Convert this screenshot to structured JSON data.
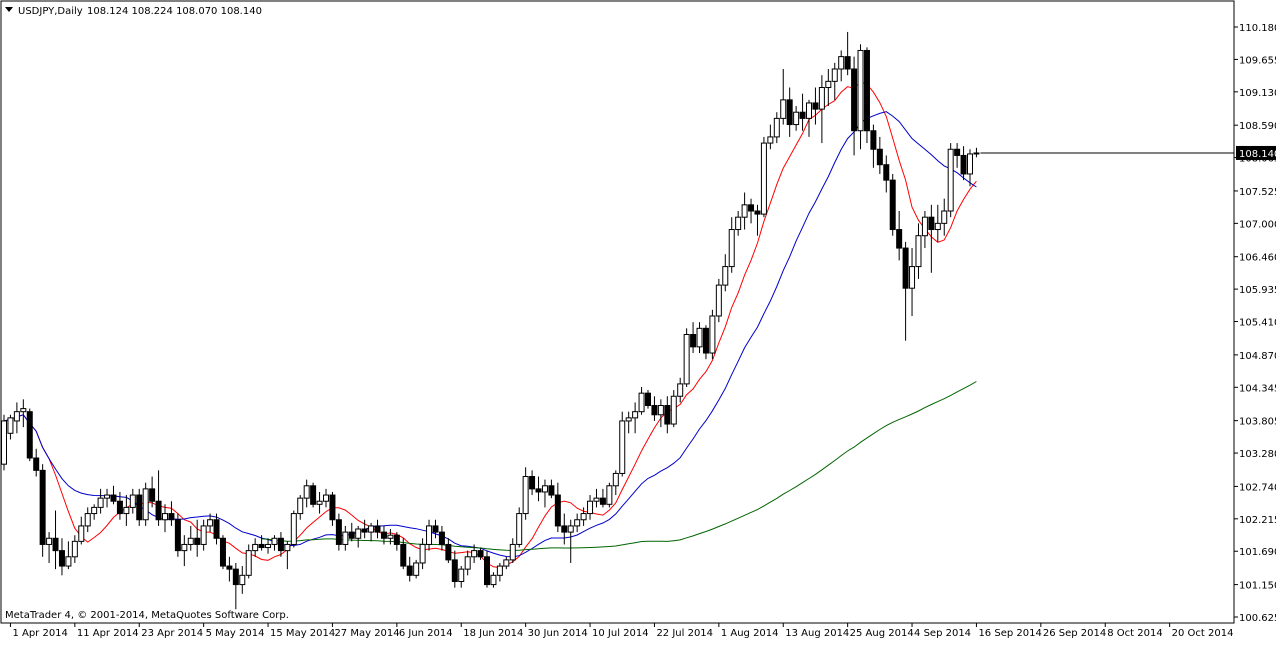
{
  "header": {
    "symbol_timeframe": "USDJPY,Daily",
    "ohlc": "108.124 108.224 108.070 108.140"
  },
  "footer": {
    "copyright": "MetaTrader 4, © 2001-2014, MetaQuotes Software Corp."
  },
  "price_tag": "108.140",
  "colors": {
    "background": "#ffffff",
    "axis": "#000000",
    "candle": "#000000",
    "ma_fast": "#ff0000",
    "ma_mid": "#0000cc",
    "ma_slow": "#006400",
    "price_tag_bg": "#000000",
    "price_tag_text": "#ffffff"
  },
  "chart_data": {
    "type": "candlestick",
    "ylim": [
      100.625,
      110.18
    ],
    "y_ticks": [
      "110.180",
      "109.655",
      "109.130",
      "108.590",
      "108.065",
      "107.525",
      "107.000",
      "106.460",
      "105.935",
      "105.410",
      "104.870",
      "104.345",
      "103.805",
      "103.280",
      "102.740",
      "102.215",
      "101.690",
      "101.150",
      "100.625"
    ],
    "x_tick_labels": [
      "1 Apr 2014",
      "11 Apr 2014",
      "23 Apr 2014",
      "5 May 2014",
      "15 May 2014",
      "27 May 2014",
      "6 Jun 2014",
      "18 Jun 2014",
      "30 Jun 2014",
      "10 Jul 2014",
      "22 Jul 2014",
      "1 Aug 2014",
      "13 Aug 2014",
      "25 Aug 2014",
      "4 Sep 2014",
      "16 Sep 2014",
      "26 Sep 2014",
      "8 Oct 2014",
      "20 Oct 2014"
    ],
    "x_tick_index": [
      1,
      11,
      21,
      31,
      41,
      51,
      61,
      71,
      81,
      91,
      101,
      111,
      121,
      131,
      141,
      151,
      161,
      171,
      181
    ],
    "bars": [
      [
        103.1,
        103.9,
        103.0,
        103.8
      ],
      [
        103.6,
        103.9,
        103.5,
        103.85
      ],
      [
        103.8,
        104.1,
        103.6,
        103.95
      ],
      [
        103.95,
        104.15,
        103.7,
        104.0
      ],
      [
        103.95,
        104.0,
        103.15,
        103.2
      ],
      [
        103.2,
        103.35,
        102.9,
        103.0
      ],
      [
        103.0,
        103.1,
        101.6,
        101.8
      ],
      [
        101.8,
        102.0,
        101.5,
        101.9
      ],
      [
        101.9,
        102.35,
        101.4,
        101.7
      ],
      [
        101.7,
        101.9,
        101.3,
        101.45
      ],
      [
        101.45,
        101.85,
        101.4,
        101.6
      ],
      [
        101.6,
        101.95,
        101.5,
        101.85
      ],
      [
        101.85,
        102.25,
        101.8,
        102.1
      ],
      [
        102.1,
        102.4,
        102.0,
        102.3
      ],
      [
        102.3,
        102.45,
        102.2,
        102.4
      ],
      [
        102.4,
        102.7,
        102.3,
        102.55
      ],
      [
        102.55,
        102.7,
        102.4,
        102.6
      ],
      [
        102.6,
        102.75,
        102.45,
        102.5
      ],
      [
        102.5,
        102.65,
        102.2,
        102.3
      ],
      [
        102.3,
        102.6,
        102.1,
        102.4
      ],
      [
        102.4,
        102.7,
        102.3,
        102.6
      ],
      [
        102.6,
        102.7,
        102.1,
        102.2
      ],
      [
        102.2,
        102.8,
        102.1,
        102.7
      ],
      [
        102.7,
        102.9,
        102.4,
        102.5
      ],
      [
        102.5,
        103.0,
        102.1,
        102.2
      ],
      [
        102.2,
        102.45,
        102.0,
        102.3
      ],
      [
        102.3,
        102.5,
        102.1,
        102.2
      ],
      [
        102.2,
        102.3,
        101.6,
        101.7
      ],
      [
        101.7,
        101.95,
        101.45,
        101.8
      ],
      [
        101.8,
        102.1,
        101.7,
        101.9
      ],
      [
        101.9,
        102.2,
        101.6,
        101.8
      ],
      [
        101.8,
        102.2,
        101.7,
        102.1
      ],
      [
        102.1,
        102.3,
        102.0,
        102.2
      ],
      [
        102.2,
        102.3,
        101.8,
        101.9
      ],
      [
        101.9,
        101.95,
        101.4,
        101.45
      ],
      [
        101.45,
        101.6,
        101.2,
        101.4
      ],
      [
        101.4,
        101.5,
        100.75,
        101.15
      ],
      [
        101.15,
        101.45,
        101.0,
        101.3
      ],
      [
        101.3,
        101.8,
        101.25,
        101.7
      ],
      [
        101.7,
        101.9,
        101.6,
        101.8
      ],
      [
        101.8,
        101.95,
        101.7,
        101.75
      ],
      [
        101.75,
        101.9,
        101.65,
        101.8
      ],
      [
        101.8,
        101.95,
        101.7,
        101.9
      ],
      [
        101.9,
        102.0,
        101.6,
        101.7
      ],
      [
        101.7,
        101.85,
        101.4,
        101.8
      ],
      [
        101.8,
        102.35,
        101.75,
        102.3
      ],
      [
        102.3,
        102.6,
        102.2,
        102.55
      ],
      [
        102.55,
        102.85,
        102.4,
        102.75
      ],
      [
        102.75,
        102.8,
        102.4,
        102.45
      ],
      [
        102.45,
        102.65,
        102.3,
        102.5
      ],
      [
        102.5,
        102.7,
        102.4,
        102.6
      ],
      [
        102.6,
        102.65,
        102.1,
        102.2
      ],
      [
        102.2,
        102.3,
        101.7,
        101.8
      ],
      [
        101.8,
        102.1,
        101.7,
        102.0
      ],
      [
        102.0,
        102.15,
        101.85,
        101.9
      ],
      [
        101.9,
        102.1,
        101.75,
        102.05
      ],
      [
        102.05,
        102.2,
        101.9,
        102.0
      ],
      [
        102.0,
        102.15,
        101.85,
        102.1
      ],
      [
        102.1,
        102.2,
        101.9,
        102.0
      ],
      [
        102.0,
        102.1,
        101.8,
        101.9
      ],
      [
        101.9,
        102.05,
        101.8,
        101.95
      ],
      [
        101.95,
        102.0,
        101.7,
        101.8
      ],
      [
        101.8,
        101.9,
        101.4,
        101.45
      ],
      [
        101.45,
        101.6,
        101.2,
        101.3
      ],
      [
        101.3,
        101.55,
        101.25,
        101.5
      ],
      [
        101.5,
        101.9,
        101.4,
        101.8
      ],
      [
        101.8,
        102.2,
        101.7,
        102.1
      ],
      [
        102.1,
        102.2,
        101.9,
        102.0
      ],
      [
        102.0,
        102.1,
        101.7,
        101.8
      ],
      [
        101.8,
        101.9,
        101.5,
        101.55
      ],
      [
        101.55,
        101.7,
        101.1,
        101.2
      ],
      [
        101.2,
        101.45,
        101.1,
        101.4
      ],
      [
        101.4,
        101.7,
        101.3,
        101.6
      ],
      [
        101.6,
        101.8,
        101.5,
        101.7
      ],
      [
        101.7,
        101.75,
        101.55,
        101.6
      ],
      [
        101.6,
        101.7,
        101.1,
        101.15
      ],
      [
        101.15,
        101.35,
        101.1,
        101.3
      ],
      [
        101.3,
        101.5,
        101.2,
        101.45
      ],
      [
        101.45,
        101.6,
        101.4,
        101.55
      ],
      [
        101.55,
        101.9,
        101.5,
        101.8
      ],
      [
        101.8,
        102.4,
        101.75,
        102.3
      ],
      [
        102.3,
        103.05,
        102.2,
        102.9
      ],
      [
        102.9,
        103.0,
        102.6,
        102.7
      ],
      [
        102.7,
        102.9,
        102.5,
        102.65
      ],
      [
        102.65,
        102.85,
        102.4,
        102.75
      ],
      [
        102.75,
        102.85,
        102.55,
        102.6
      ],
      [
        102.6,
        102.8,
        102.0,
        102.1
      ],
      [
        102.1,
        102.3,
        101.8,
        102.0
      ],
      [
        102.0,
        102.2,
        101.5,
        102.1
      ],
      [
        102.1,
        102.3,
        102.0,
        102.2
      ],
      [
        102.2,
        102.4,
        102.1,
        102.3
      ],
      [
        102.3,
        102.6,
        102.2,
        102.5
      ],
      [
        102.5,
        102.7,
        102.4,
        102.55
      ],
      [
        102.55,
        102.7,
        102.4,
        102.45
      ],
      [
        102.45,
        102.8,
        102.4,
        102.75
      ],
      [
        102.75,
        103.0,
        102.6,
        102.95
      ],
      [
        102.95,
        103.95,
        102.9,
        103.8
      ],
      [
        103.8,
        103.95,
        103.6,
        103.85
      ],
      [
        103.85,
        104.1,
        103.6,
        103.95
      ],
      [
        103.95,
        104.35,
        103.9,
        104.25
      ],
      [
        104.25,
        104.3,
        104.0,
        104.05
      ],
      [
        104.05,
        104.2,
        103.8,
        103.9
      ],
      [
        103.9,
        104.15,
        103.7,
        104.05
      ],
      [
        104.05,
        104.2,
        103.6,
        103.75
      ],
      [
        103.75,
        104.3,
        103.7,
        104.2
      ],
      [
        104.2,
        104.5,
        104.1,
        104.4
      ],
      [
        104.4,
        105.3,
        104.35,
        105.2
      ],
      [
        105.2,
        105.4,
        104.9,
        105.0
      ],
      [
        105.0,
        105.4,
        104.9,
        105.3
      ],
      [
        105.3,
        105.35,
        104.8,
        104.9
      ],
      [
        104.9,
        105.6,
        104.8,
        105.5
      ],
      [
        105.5,
        106.1,
        105.4,
        106.0
      ],
      [
        106.0,
        106.5,
        105.9,
        106.3
      ],
      [
        106.3,
        107.1,
        106.2,
        106.9
      ],
      [
        106.9,
        107.2,
        106.8,
        107.1
      ],
      [
        107.1,
        107.5,
        106.9,
        107.3
      ],
      [
        107.3,
        107.4,
        107.0,
        107.2
      ],
      [
        107.2,
        107.3,
        106.8,
        107.15
      ],
      [
        107.15,
        108.4,
        107.1,
        108.3
      ],
      [
        108.3,
        108.6,
        108.2,
        108.4
      ],
      [
        108.4,
        108.8,
        108.3,
        108.7
      ],
      [
        108.7,
        109.5,
        108.6,
        109.0
      ],
      [
        109.0,
        109.2,
        108.4,
        108.6
      ],
      [
        108.6,
        108.9,
        108.5,
        108.8
      ],
      [
        108.8,
        109.1,
        108.5,
        108.7
      ],
      [
        108.7,
        109.0,
        108.4,
        108.95
      ],
      [
        108.95,
        109.2,
        108.6,
        108.85
      ],
      [
        108.85,
        109.4,
        108.3,
        109.2
      ],
      [
        109.2,
        109.5,
        108.9,
        109.3
      ],
      [
        109.3,
        109.6,
        109.0,
        109.5
      ],
      [
        109.5,
        109.8,
        109.3,
        109.7
      ],
      [
        109.7,
        110.1,
        109.4,
        109.5
      ],
      [
        109.5,
        109.7,
        108.1,
        108.5
      ],
      [
        108.5,
        109.9,
        108.2,
        109.8
      ],
      [
        109.8,
        109.85,
        108.3,
        108.5
      ],
      [
        108.5,
        108.6,
        107.9,
        108.2
      ],
      [
        108.2,
        108.4,
        107.8,
        107.95
      ],
      [
        107.95,
        108.1,
        107.5,
        107.7
      ],
      [
        107.7,
        107.8,
        106.8,
        106.9
      ],
      [
        106.9,
        107.2,
        106.4,
        106.6
      ],
      [
        106.6,
        106.7,
        105.1,
        105.95
      ],
      [
        105.95,
        106.6,
        105.5,
        106.3
      ],
      [
        106.3,
        107.0,
        106.1,
        106.8
      ],
      [
        106.8,
        107.2,
        106.6,
        107.1
      ],
      [
        107.1,
        107.3,
        106.2,
        106.9
      ],
      [
        106.9,
        107.3,
        106.7,
        107.0
      ],
      [
        107.0,
        107.4,
        106.8,
        107.2
      ],
      [
        107.2,
        108.3,
        107.1,
        108.2
      ],
      [
        108.2,
        108.3,
        107.9,
        108.1
      ],
      [
        108.1,
        108.25,
        107.7,
        107.8
      ],
      [
        107.8,
        108.2,
        107.6,
        108.124
      ],
      [
        108.124,
        108.224,
        108.07,
        108.14
      ]
    ]
  }
}
